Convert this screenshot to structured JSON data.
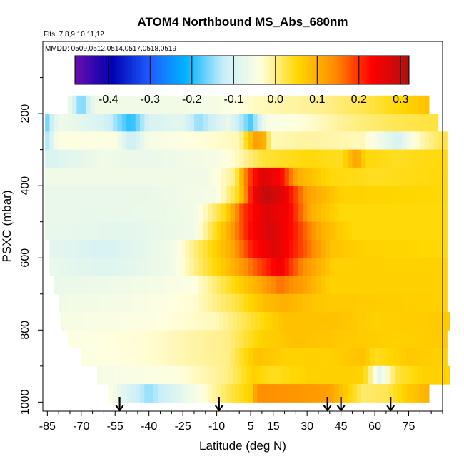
{
  "chart_data": {
    "type": "heatmap",
    "title": "ATOM4 Northbound MS_Abs_680nm",
    "subtitle_flights": "Flts: 7,8,9,10,11,12",
    "subtitle_dates": "MMDD: 0509,0512,0514,0517,0518,0519",
    "xlabel": "Latitude (deg N)",
    "ylabel": "PSXC (mbar)",
    "xlim": [
      -87,
      90
    ],
    "ylim": [
      1025,
      0
    ],
    "x_ticks": [
      -85,
      -70,
      -55,
      -40,
      -25,
      -10,
      5,
      15,
      30,
      45,
      60,
      75
    ],
    "x_tick_labels": [
      "-85",
      "-70",
      "-55",
      "-40",
      "-25",
      "-10",
      "5",
      "15",
      "30",
      "45",
      "60",
      "75"
    ],
    "y_ticks": [
      200,
      400,
      600,
      800,
      1000
    ],
    "y_tick_labels": [
      "200",
      "400",
      "600",
      "800",
      "1000"
    ],
    "colorbar": {
      "min": -0.48,
      "max": 0.32,
      "ticks": [
        -0.4,
        -0.3,
        -0.2,
        -0.1,
        0.0,
        0.1,
        0.2,
        0.3
      ],
      "tick_labels": [
        "-0.4",
        "-0.3",
        "-0.2",
        "-0.1",
        "0.0",
        "0.1",
        "0.2",
        "0.3"
      ],
      "colors": [
        "#6a0dad",
        "#0000b0",
        "#1e5bff",
        "#00b4ff",
        "#c8eefa",
        "#ffffe0",
        "#ffd700",
        "#ff8c00",
        "#ff0000",
        "#b01010"
      ]
    },
    "arrows_latitude": [
      -53,
      -9,
      39,
      45,
      67
    ],
    "rows": [
      {
        "p": 175,
        "lat_min": -76,
        "lat_max": 84,
        "profile": [
          [
            -76,
            -0.05
          ],
          [
            -70,
            -0.17
          ],
          [
            -64,
            -0.06
          ],
          [
            -40,
            -0.06
          ],
          [
            -10,
            -0.05
          ],
          [
            10,
            -0.02
          ],
          [
            40,
            0.0
          ],
          [
            60,
            0.03
          ],
          [
            75,
            0.06
          ],
          [
            84,
            0.08
          ]
        ]
      },
      {
        "p": 225,
        "lat_min": -86,
        "lat_max": 88,
        "profile": [
          [
            -86,
            -0.18
          ],
          [
            -80,
            -0.06
          ],
          [
            -60,
            -0.1
          ],
          [
            -48,
            -0.2
          ],
          [
            -40,
            -0.1
          ],
          [
            -26,
            -0.08
          ],
          [
            -18,
            -0.15
          ],
          [
            -5,
            -0.07
          ],
          [
            5,
            -0.18
          ],
          [
            12,
            -0.05
          ],
          [
            30,
            -0.03
          ],
          [
            50,
            0.0
          ],
          [
            70,
            0.02
          ],
          [
            88,
            0.03
          ]
        ]
      },
      {
        "p": 275,
        "lat_min": -86,
        "lat_max": 92,
        "profile": [
          [
            -86,
            -0.15
          ],
          [
            -80,
            -0.04
          ],
          [
            -55,
            -0.04
          ],
          [
            -48,
            -0.12
          ],
          [
            -40,
            -0.05
          ],
          [
            0,
            -0.02
          ],
          [
            7,
            0.12
          ],
          [
            11,
            0.1
          ],
          [
            14,
            -0.02
          ],
          [
            30,
            -0.01
          ],
          [
            55,
            -0.02
          ],
          [
            70,
            -0.1
          ],
          [
            80,
            -0.02
          ],
          [
            92,
            0.03
          ]
        ]
      },
      {
        "p": 325,
        "lat_min": -86,
        "lat_max": 92,
        "profile": [
          [
            -86,
            -0.1
          ],
          [
            -60,
            -0.06
          ],
          [
            -40,
            -0.07
          ],
          [
            -10,
            -0.05
          ],
          [
            0,
            -0.02
          ],
          [
            10,
            0.03
          ],
          [
            30,
            0.05
          ],
          [
            45,
            0.04
          ],
          [
            52,
            0.12
          ],
          [
            56,
            0.05
          ],
          [
            70,
            0.04
          ],
          [
            92,
            0.05
          ]
        ]
      },
      {
        "p": 375,
        "lat_min": -86,
        "lat_max": 92,
        "profile": [
          [
            -86,
            -0.06
          ],
          [
            -40,
            -0.06
          ],
          [
            -15,
            -0.06
          ],
          [
            -2,
            0.0
          ],
          [
            4,
            0.18
          ],
          [
            10,
            0.27
          ],
          [
            18,
            0.24
          ],
          [
            26,
            0.1
          ],
          [
            40,
            0.05
          ],
          [
            60,
            0.04
          ],
          [
            92,
            0.05
          ]
        ]
      },
      {
        "p": 425,
        "lat_min": -86,
        "lat_max": 92,
        "profile": [
          [
            -86,
            -0.07
          ],
          [
            -40,
            -0.07
          ],
          [
            -10,
            -0.05
          ],
          [
            0,
            0.05
          ],
          [
            6,
            0.24
          ],
          [
            12,
            0.3
          ],
          [
            20,
            0.26
          ],
          [
            30,
            0.12
          ],
          [
            45,
            0.06
          ],
          [
            92,
            0.05
          ]
        ]
      },
      {
        "p": 475,
        "lat_min": -86,
        "lat_max": 92,
        "profile": [
          [
            -86,
            -0.07
          ],
          [
            -50,
            -0.07
          ],
          [
            -20,
            -0.06
          ],
          [
            -6,
            0.05
          ],
          [
            2,
            0.2
          ],
          [
            12,
            0.27
          ],
          [
            22,
            0.24
          ],
          [
            32,
            0.1
          ],
          [
            45,
            0.05
          ],
          [
            92,
            0.05
          ]
        ]
      },
      {
        "p": 525,
        "lat_min": -86,
        "lat_max": 92,
        "profile": [
          [
            -86,
            -0.07
          ],
          [
            -50,
            -0.08
          ],
          [
            -20,
            -0.06
          ],
          [
            -5,
            0.1
          ],
          [
            4,
            0.22
          ],
          [
            14,
            0.28
          ],
          [
            24,
            0.22
          ],
          [
            36,
            0.1
          ],
          [
            50,
            0.05
          ],
          [
            92,
            0.05
          ]
        ]
      },
      {
        "p": 575,
        "lat_min": -84,
        "lat_max": 92,
        "profile": [
          [
            -84,
            -0.08
          ],
          [
            -60,
            -0.1
          ],
          [
            -30,
            -0.06
          ],
          [
            -4,
            0.1
          ],
          [
            6,
            0.22
          ],
          [
            16,
            0.27
          ],
          [
            26,
            0.2
          ],
          [
            40,
            0.08
          ],
          [
            55,
            0.06
          ],
          [
            92,
            0.05
          ]
        ]
      },
      {
        "p": 625,
        "lat_min": -84,
        "lat_max": 92,
        "profile": [
          [
            -84,
            -0.07
          ],
          [
            -60,
            -0.09
          ],
          [
            -30,
            -0.06
          ],
          [
            -2,
            0.1
          ],
          [
            8,
            0.18
          ],
          [
            18,
            0.25
          ],
          [
            28,
            0.14
          ],
          [
            42,
            0.06
          ],
          [
            92,
            0.06
          ]
        ]
      },
      {
        "p": 675,
        "lat_min": -82,
        "lat_max": 92,
        "profile": [
          [
            -82,
            -0.07
          ],
          [
            -50,
            -0.06
          ],
          [
            -20,
            -0.04
          ],
          [
            0,
            0.06
          ],
          [
            8,
            0.1
          ],
          [
            18,
            0.16
          ],
          [
            28,
            0.12
          ],
          [
            40,
            0.06
          ],
          [
            92,
            0.06
          ]
        ]
      },
      {
        "p": 725,
        "lat_min": -80,
        "lat_max": 92,
        "profile": [
          [
            -80,
            -0.06
          ],
          [
            -50,
            -0.05
          ],
          [
            -20,
            -0.03
          ],
          [
            0,
            0.03
          ],
          [
            10,
            0.08
          ],
          [
            20,
            0.1
          ],
          [
            35,
            0.07
          ],
          [
            92,
            0.06
          ]
        ]
      },
      {
        "p": 775,
        "lat_min": -79,
        "lat_max": 92,
        "profile": [
          [
            -79,
            -0.05
          ],
          [
            -40,
            -0.04
          ],
          [
            -10,
            -0.02
          ],
          [
            5,
            0.03
          ],
          [
            20,
            0.08
          ],
          [
            40,
            0.08
          ],
          [
            60,
            0.06
          ],
          [
            92,
            0.07
          ]
        ]
      },
      {
        "p": 825,
        "lat_min": -76,
        "lat_max": 92,
        "profile": [
          [
            -76,
            -0.04
          ],
          [
            -40,
            -0.03
          ],
          [
            -5,
            0.0
          ],
          [
            10,
            0.06
          ],
          [
            25,
            0.08
          ],
          [
            45,
            0.07
          ],
          [
            70,
            0.06
          ],
          [
            92,
            0.07
          ]
        ]
      },
      {
        "p": 875,
        "lat_min": -70,
        "lat_max": 92,
        "profile": [
          [
            -70,
            -0.04
          ],
          [
            -40,
            -0.03
          ],
          [
            -5,
            0.0
          ],
          [
            8,
            0.08
          ],
          [
            20,
            0.06
          ],
          [
            40,
            0.06
          ],
          [
            55,
            0.08
          ],
          [
            60,
            0.04
          ],
          [
            75,
            0.07
          ],
          [
            92,
            0.06
          ]
        ]
      },
      {
        "p": 925,
        "lat_min": -63,
        "lat_max": 92,
        "profile": [
          [
            -63,
            -0.05
          ],
          [
            -30,
            -0.04
          ],
          [
            -5,
            0.0
          ],
          [
            6,
            0.06
          ],
          [
            15,
            0.04
          ],
          [
            30,
            0.06
          ],
          [
            55,
            0.06
          ],
          [
            62,
            -0.08
          ],
          [
            70,
            0.03
          ],
          [
            82,
            0.06
          ],
          [
            92,
            0.06
          ]
        ]
      },
      {
        "p": 975,
        "lat_min": -58,
        "lat_max": 84,
        "profile": [
          [
            -58,
            -0.04
          ],
          [
            -40,
            -0.15
          ],
          [
            -30,
            -0.1
          ],
          [
            -15,
            -0.03
          ],
          [
            -5,
            0.02
          ],
          [
            5,
            0.06
          ],
          [
            8,
            0.14
          ],
          [
            25,
            0.13
          ],
          [
            40,
            0.12
          ],
          [
            48,
            0.06
          ],
          [
            55,
            0.01
          ],
          [
            65,
            0.02
          ],
          [
            75,
            0.07
          ],
          [
            84,
            0.1
          ]
        ]
      }
    ]
  }
}
